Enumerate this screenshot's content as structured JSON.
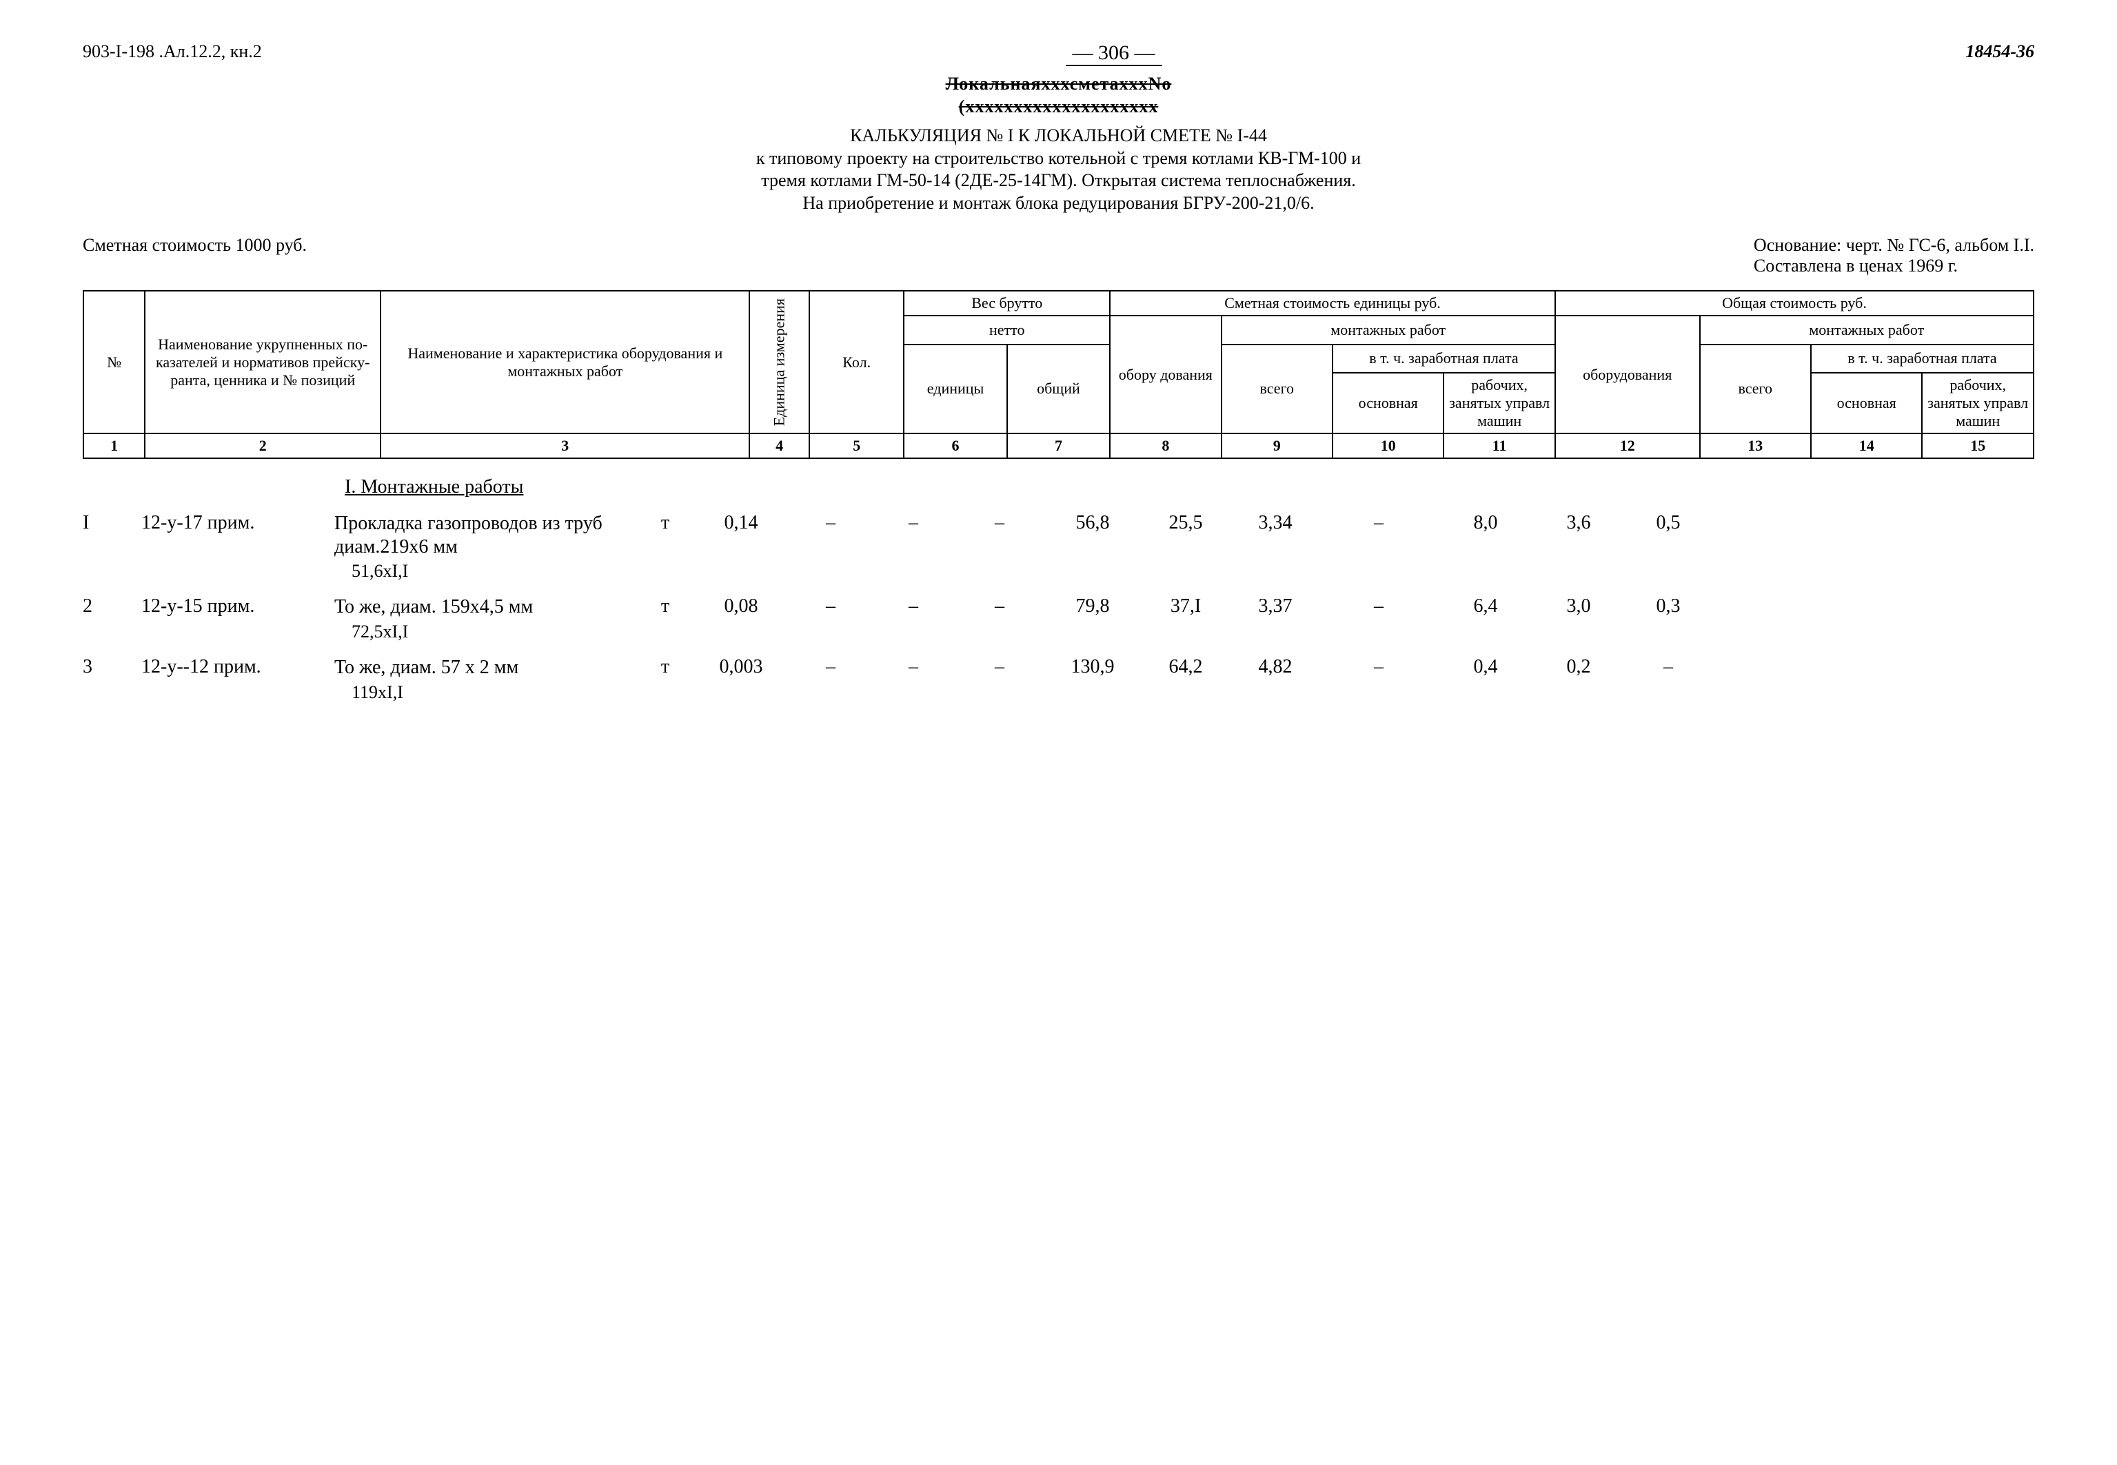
{
  "header": {
    "doc_left": "903-I-198 .Ал.12.2, кн.2",
    "page_number": "— 306 —",
    "doc_right": "18454-36",
    "struck1": "ЛокальнаяхххсметахххNo",
    "struck2": "(хххххххххххххххххххх",
    "title_line": "КАЛЬКУЛЯЦИЯ № I К ЛОКАЛЬНОЙ СМЕТЕ № I-44",
    "desc1": "к типовому проекту на строительство котельной с тремя котлами КВ-ГМ-100 и",
    "desc2": "тремя котлами ГМ-50-14 (2ДЕ-25-14ГМ). Открытая система теплоснабжения.",
    "desc3": "На приобретение и монтаж блока редуцирования БГРУ-200-21,0/6.",
    "cost_label": "Сметная стоимость 1000 руб.",
    "basis1": "Основание: черт. № ГС-6, альбом I.I.",
    "basis2": "Составлена в ценах 1969 г."
  },
  "table_header": {
    "col1": "№",
    "col2": "Наименова­ние укруп­ненных по­казателей и нормативов прейску­ранта, цен­ника и № позиций",
    "col3": "Наименование и характеристика оборудования и монтажных работ",
    "col4": "Единица измерения",
    "col5": "Кол.",
    "weight_top": "Вес брутто",
    "weight_sub": "нетто",
    "col6": "единицы",
    "col7": "общий",
    "unit_cost": "Сметная стоимость единицы руб.",
    "col8": "обору дования",
    "mont": "монтажных работ",
    "col9": "всего",
    "wage": "в т. ч. заработная плата",
    "col10": "основная",
    "col11": "рабочих, занятых управл машин",
    "total_cost": "Общая стоимость руб.",
    "col12": "обо­рудования",
    "col13": "всего",
    "col14": "основная",
    "col15": "рабочих, занятых управл машин"
  },
  "nums": [
    "1",
    "2",
    "3",
    "4",
    "5",
    "6",
    "7",
    "8",
    "9",
    "10",
    "11",
    "12",
    "13",
    "14",
    "15"
  ],
  "section": "I. Монтажные работы",
  "rows": [
    {
      "n": "I",
      "code": "12-у-17 прим.",
      "desc": "Прокладка газо­проводов из труб диам.219х6 мм",
      "note": "51,6хI,I",
      "unit": "т",
      "qty": "0,14",
      "c6": "–",
      "c7": "–",
      "c8": "–",
      "c9": "56,8",
      "c10": "25,5",
      "c11": "3,34",
      "c12": "–",
      "c13": "8,0",
      "c14": "3,6",
      "c15": "0,5"
    },
    {
      "n": "2",
      "code": "12-у-15 прим.",
      "desc": "То же, диам. 159х4,5 мм",
      "note": "72,5хI,I",
      "unit": "т",
      "qty": "0,08",
      "c6": "–",
      "c7": "–",
      "c8": "–",
      "c9": "79,8",
      "c10": "37,I",
      "c11": "3,37",
      "c12": "–",
      "c13": "6,4",
      "c14": "3,0",
      "c15": "0,3"
    },
    {
      "n": "3",
      "code": "12-у--12 прим.",
      "desc": "То же, диам. 57 х 2 мм",
      "note": "119хI,I",
      "unit": "т",
      "qty": "0,003",
      "c6": "–",
      "c7": "–",
      "c8": "–",
      "c9": "130,9",
      "c10": "64,2",
      "c11": "4,82",
      "c12": "–",
      "c13": "0,4",
      "c14": "0,2",
      "c15": "–"
    }
  ]
}
